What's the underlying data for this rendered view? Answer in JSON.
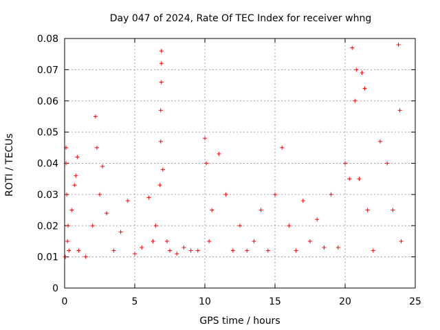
{
  "chart_data": {
    "type": "scatter",
    "title": "Day 047 of 2024, Rate Of TEC Index for receiver whng",
    "xlabel": "GPS time / hours",
    "ylabel": "ROTI / TECUs",
    "xlim": [
      0,
      25
    ],
    "ylim": [
      0,
      0.08
    ],
    "xticks": [
      0,
      5,
      10,
      15,
      20,
      25
    ],
    "xtick_labels": [
      "0",
      "5",
      "10",
      "15",
      "20",
      "25"
    ],
    "yticks": [
      0,
      0.01,
      0.02,
      0.03,
      0.04,
      0.05,
      0.06,
      0.07,
      0.08
    ],
    "ytick_labels": [
      "0",
      "0.01",
      "0.02",
      "0.03",
      "0.04",
      "0.05",
      "0.06",
      "0.07",
      "0.08"
    ],
    "grid": true,
    "marker": "+",
    "color": "#ff0000",
    "series": [
      {
        "x": [
          0.05,
          0.1,
          0.1,
          0.15,
          0.2,
          0.25,
          0.3,
          0.5,
          0.7,
          0.8,
          0.9,
          1.0,
          1.5,
          2.0,
          2.2,
          2.3,
          2.5,
          2.7,
          3.0,
          3.5,
          4.0,
          4.5,
          5.0,
          5.5,
          6.0,
          6.3,
          6.5,
          6.8,
          6.85,
          6.85,
          6.9,
          6.9,
          6.9,
          7.0,
          7.3,
          7.5,
          8.0,
          8.5,
          9.0,
          9.5,
          10.0,
          10.1,
          10.3,
          10.5,
          11.0,
          11.5,
          12.0,
          12.5,
          13.0,
          13.5,
          14.0,
          14.5,
          15.0,
          15.5,
          16.0,
          16.5,
          17.0,
          17.5,
          18.0,
          18.5,
          19.0,
          19.5,
          20.0,
          20.3,
          20.5,
          20.7,
          20.8,
          21.0,
          21.2,
          21.4,
          21.6,
          22.0,
          22.5,
          23.0,
          23.4,
          23.8,
          23.9,
          24.0
        ],
        "y": [
          0.01,
          0.045,
          0.04,
          0.03,
          0.015,
          0.02,
          0.012,
          0.025,
          0.033,
          0.036,
          0.042,
          0.012,
          0.01,
          0.02,
          0.055,
          0.045,
          0.03,
          0.039,
          0.024,
          0.012,
          0.018,
          0.028,
          0.011,
          0.013,
          0.029,
          0.015,
          0.02,
          0.033,
          0.047,
          0.057,
          0.066,
          0.072,
          0.076,
          0.038,
          0.015,
          0.012,
          0.011,
          0.013,
          0.012,
          0.012,
          0.048,
          0.04,
          0.015,
          0.025,
          0.043,
          0.03,
          0.012,
          0.02,
          0.012,
          0.015,
          0.025,
          0.012,
          0.03,
          0.045,
          0.02,
          0.012,
          0.028,
          0.015,
          0.022,
          0.013,
          0.03,
          0.013,
          0.04,
          0.035,
          0.077,
          0.06,
          0.07,
          0.035,
          0.069,
          0.064,
          0.025,
          0.012,
          0.047,
          0.04,
          0.025,
          0.078,
          0.057,
          0.015
        ]
      }
    ]
  }
}
